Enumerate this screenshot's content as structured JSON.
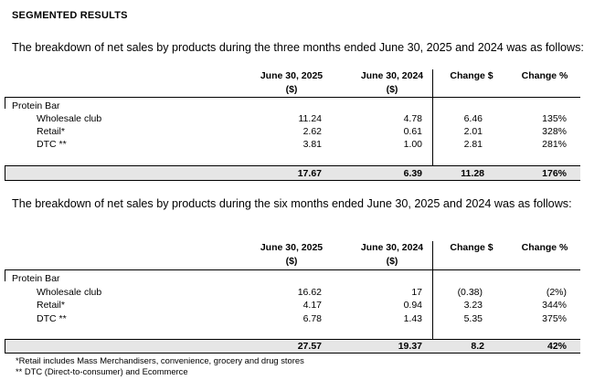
{
  "title": "SEGMENTED RESULTS",
  "table3m": {
    "intro": "The breakdown of net sales by products during the three months ended June 30, 2025 and 2024 was as follows:",
    "headers": {
      "col2025_line1": "June 30, 2025",
      "col2025_line2": "($)",
      "col2024_line1": "June 30, 2024",
      "col2024_line2": "($)",
      "change_usd": "Change $",
      "change_pct": "Change %"
    },
    "category": "Protein Bar",
    "rows": [
      {
        "label": "Wholesale club",
        "v2025": "11.24",
        "v2024": "4.78",
        "chg": "6.46",
        "pct": "135%"
      },
      {
        "label": "Retail*",
        "v2025": "2.62",
        "v2024": "0.61",
        "chg": "2.01",
        "pct": "328%"
      },
      {
        "label": "DTC **",
        "v2025": "3.81",
        "v2024": "1.00",
        "chg": "2.81",
        "pct": "281%"
      }
    ],
    "total": {
      "v2025": "17.67",
      "v2024": "6.39",
      "chg": "11.28",
      "pct": "176%"
    }
  },
  "table6m": {
    "intro": "The breakdown of net sales by products during the six months ended June 30, 2025 and 2024 was as follows:",
    "headers": {
      "col2025_line1": "June 30, 2025",
      "col2025_line2": "($)",
      "col2024_line1": "June 30, 2024",
      "col2024_line2": "($)",
      "change_usd": "Change $",
      "change_pct": "Change %"
    },
    "category": "Protein Bar",
    "rows": [
      {
        "label": "Wholesale club",
        "v2025": "16.62",
        "v2024": "17",
        "chg": "(0.38)",
        "pct": "(2%)"
      },
      {
        "label": "Retail*",
        "v2025": "4.17",
        "v2024": "0.94",
        "chg": "3.23",
        "pct": "344%"
      },
      {
        "label": "DTC **",
        "v2025": "6.78",
        "v2024": "1.43",
        "chg": "5.35",
        "pct": "375%"
      }
    ],
    "total": {
      "v2025": "27.57",
      "v2024": "19.37",
      "chg": "8.2",
      "pct": "42%"
    }
  },
  "footnotes": {
    "retail": "*Retail includes Mass Merchandisers, convenience, grocery and drug stores",
    "dtc": "** DTC (Direct-to-consumer) and Ecommerce"
  }
}
